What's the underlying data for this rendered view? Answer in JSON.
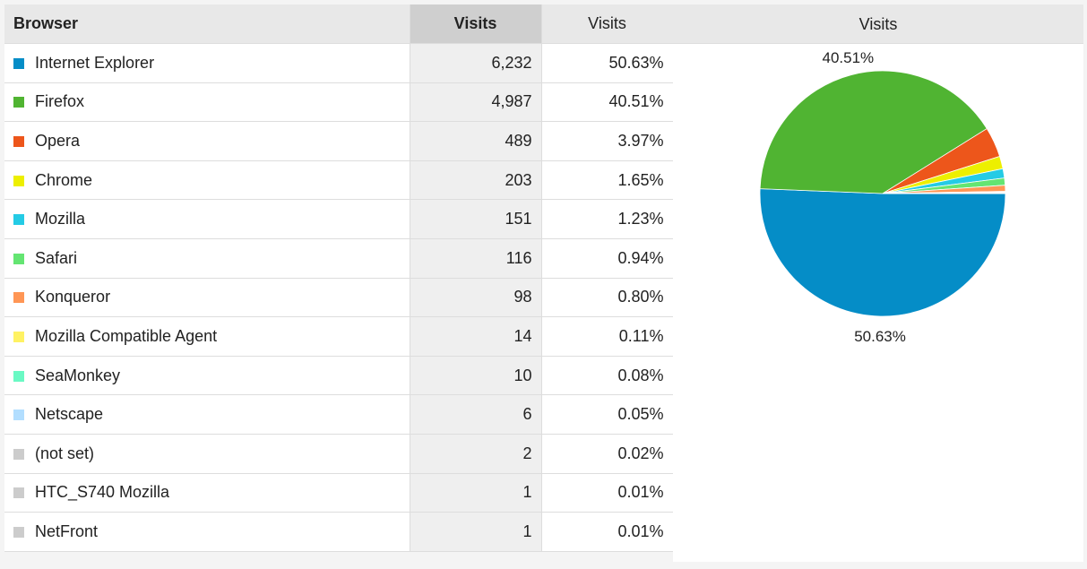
{
  "table": {
    "headers": [
      "Browser",
      "Visits",
      "Visits"
    ],
    "rows": [
      [
        "Internet Explorer",
        "6,232",
        "50.63%"
      ],
      [
        "Firefox",
        "4,987",
        "40.51%"
      ],
      [
        "Opera",
        "489",
        "3.97%"
      ],
      [
        "Chrome",
        "203",
        "1.65%"
      ],
      [
        "Mozilla",
        "151",
        "1.23%"
      ],
      [
        "Safari",
        "116",
        "0.94%"
      ],
      [
        "Konqueror",
        "98",
        "0.80%"
      ],
      [
        "Mozilla Compatible Agent",
        "14",
        "0.11%"
      ],
      [
        "SeaMonkey",
        "10",
        "0.08%"
      ],
      [
        "Netscape",
        "6",
        "0.05%"
      ],
      [
        "(not set)",
        "2",
        "0.02%"
      ],
      [
        "HTC_S740 Mozilla",
        "1",
        "0.01%"
      ],
      [
        "NetFront",
        "1",
        "0.01%"
      ]
    ]
  },
  "chart_data": {
    "type": "pie",
    "title": "Visits",
    "values": [
      50.63,
      40.51,
      3.97,
      1.65,
      1.23,
      0.94,
      0.8,
      0.11,
      0.08,
      0.05,
      0.02,
      0.01,
      0.01
    ],
    "value_labels": [
      "50.63%",
      "40.51%",
      null,
      null,
      null,
      null,
      null,
      null,
      null,
      null,
      null,
      null,
      null
    ],
    "colors": [
      "#058dc7",
      "#50b432",
      "#ed561b",
      "#edef00",
      "#24cbe5",
      "#64e572",
      "#ff9655",
      "#fff263",
      "#6af9c4",
      "#b2deff",
      "#cccccc",
      "#cccccc",
      "#cccccc"
    ]
  }
}
